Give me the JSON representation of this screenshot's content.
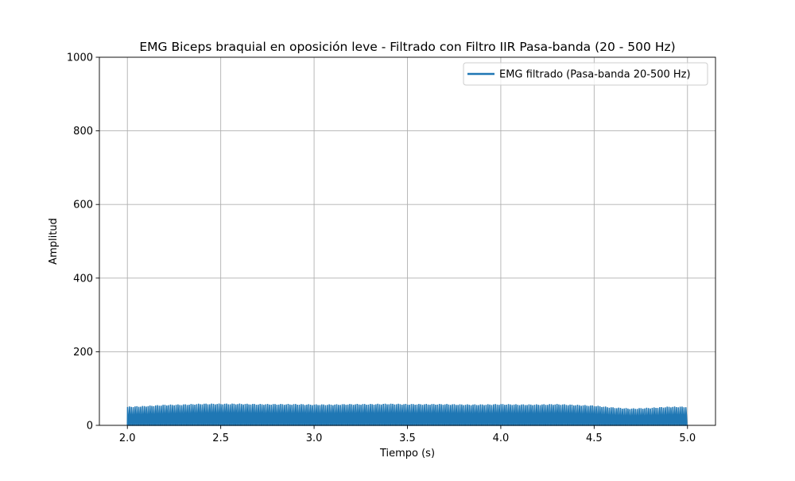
{
  "chart_data": {
    "type": "line",
    "title": "EMG Biceps braquial en oposición leve - Filtrado con Filtro IIR Pasa-banda (20 - 500 Hz)",
    "xlabel": "Tiempo (s)",
    "ylabel": "Amplitud",
    "xlim": [
      1.85,
      5.15
    ],
    "ylim": [
      0,
      1000
    ],
    "xticks": [
      2.0,
      2.5,
      3.0,
      3.5,
      4.0,
      4.5,
      5.0
    ],
    "xtick_labels": [
      "2.0",
      "2.5",
      "3.0",
      "3.5",
      "4.0",
      "4.5",
      "5.0"
    ],
    "yticks": [
      0,
      200,
      400,
      600,
      800,
      1000
    ],
    "ytick_labels": [
      "0",
      "200",
      "400",
      "600",
      "800",
      "1000"
    ],
    "grid": true,
    "legend_position": "upper right",
    "colors": {
      "series": "#1f77b4",
      "grid": "#b0b0b0",
      "axes": "#000000"
    },
    "series": [
      {
        "name": "EMG filtrado (Pasa-banda 20-500 Hz)",
        "x_start": 2.0,
        "x_end": 5.0,
        "baseline": 0,
        "envelope_x": [
          2.0,
          2.1,
          2.2,
          2.3,
          2.4,
          2.5,
          2.6,
          2.7,
          2.8,
          2.9,
          3.0,
          3.1,
          3.2,
          3.3,
          3.4,
          3.5,
          3.6,
          3.7,
          3.8,
          3.9,
          4.0,
          4.1,
          4.2,
          4.3,
          4.4,
          4.5,
          4.6,
          4.7,
          4.8,
          4.9,
          5.0
        ],
        "envelope_peak": [
          50,
          52,
          55,
          56,
          58,
          58,
          58,
          57,
          57,
          57,
          56,
          56,
          57,
          57,
          58,
          57,
          57,
          57,
          56,
          56,
          57,
          56,
          56,
          57,
          55,
          53,
          48,
          45,
          47,
          50,
          50
        ]
      }
    ]
  }
}
